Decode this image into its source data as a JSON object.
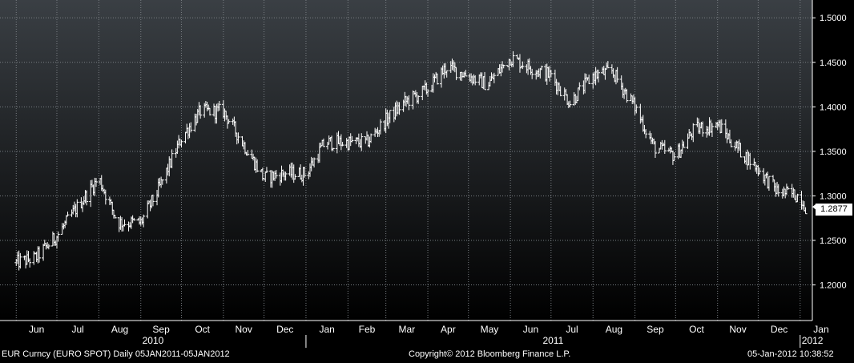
{
  "footer": {
    "security": "EUR Curncy (EURO SPOT)  Daily 05JAN2011-05JAN2012",
    "copyright": "Copyright© 2012 Bloomberg Finance L.P.",
    "timestamp": "05-Jan-2012 10:38:52"
  },
  "colors": {
    "background_top": "#3a3f44",
    "background_bottom": "#000000",
    "bars": "#ffffff",
    "grid": "#7a7f84"
  },
  "chart_data": {
    "type": "ohlc",
    "title": "",
    "xlabel": "",
    "ylabel": "",
    "ylim": [
      1.16,
      1.52
    ],
    "grid": true,
    "y_axis_position": "right",
    "y_ticks": [
      "1.2000",
      "1.2500",
      "1.3000",
      "1.3500",
      "1.4000",
      "1.4500",
      "1.5000"
    ],
    "last_value_label": "1.2877",
    "x_month_labels": [
      "Jun",
      "Jul",
      "Aug",
      "Sep",
      "Oct",
      "Nov",
      "Dec",
      "Jan",
      "Feb",
      "Mar",
      "Apr",
      "May",
      "Jun",
      "Jul",
      "Aug",
      "Sep",
      "Oct",
      "Nov",
      "Dec",
      "Jan"
    ],
    "x_year_labels": [
      "2010",
      "2011",
      "2012"
    ],
    "series": [
      {
        "x": [
          "2010-06-01",
          "2010-06-15",
          "2010-07-01",
          "2010-07-15",
          "2010-08-01",
          "2010-08-15",
          "2010-09-01",
          "2010-09-15",
          "2010-10-01",
          "2010-10-15",
          "2010-11-01",
          "2010-11-15",
          "2010-12-01",
          "2010-12-15",
          "2011-01-01",
          "2011-01-15",
          "2011-02-01",
          "2011-02-15",
          "2011-03-01",
          "2011-03-15",
          "2011-04-01",
          "2011-04-15",
          "2011-05-01",
          "2011-05-15",
          "2011-06-01",
          "2011-06-15",
          "2011-07-01",
          "2011-07-15",
          "2011-08-01",
          "2011-08-15",
          "2011-09-01",
          "2011-09-15",
          "2011-10-01",
          "2011-10-15",
          "2011-11-01",
          "2011-11-15",
          "2011-12-01",
          "2011-12-15",
          "2012-01-01",
          "2012-01-05"
        ],
        "values": [
          1.225,
          1.23,
          1.255,
          1.285,
          1.32,
          1.27,
          1.27,
          1.31,
          1.365,
          1.395,
          1.395,
          1.36,
          1.32,
          1.325,
          1.325,
          1.36,
          1.36,
          1.36,
          1.385,
          1.405,
          1.42,
          1.445,
          1.435,
          1.425,
          1.455,
          1.445,
          1.435,
          1.405,
          1.435,
          1.44,
          1.4,
          1.355,
          1.345,
          1.375,
          1.38,
          1.355,
          1.33,
          1.305,
          1.3,
          1.2877
        ]
      }
    ]
  }
}
